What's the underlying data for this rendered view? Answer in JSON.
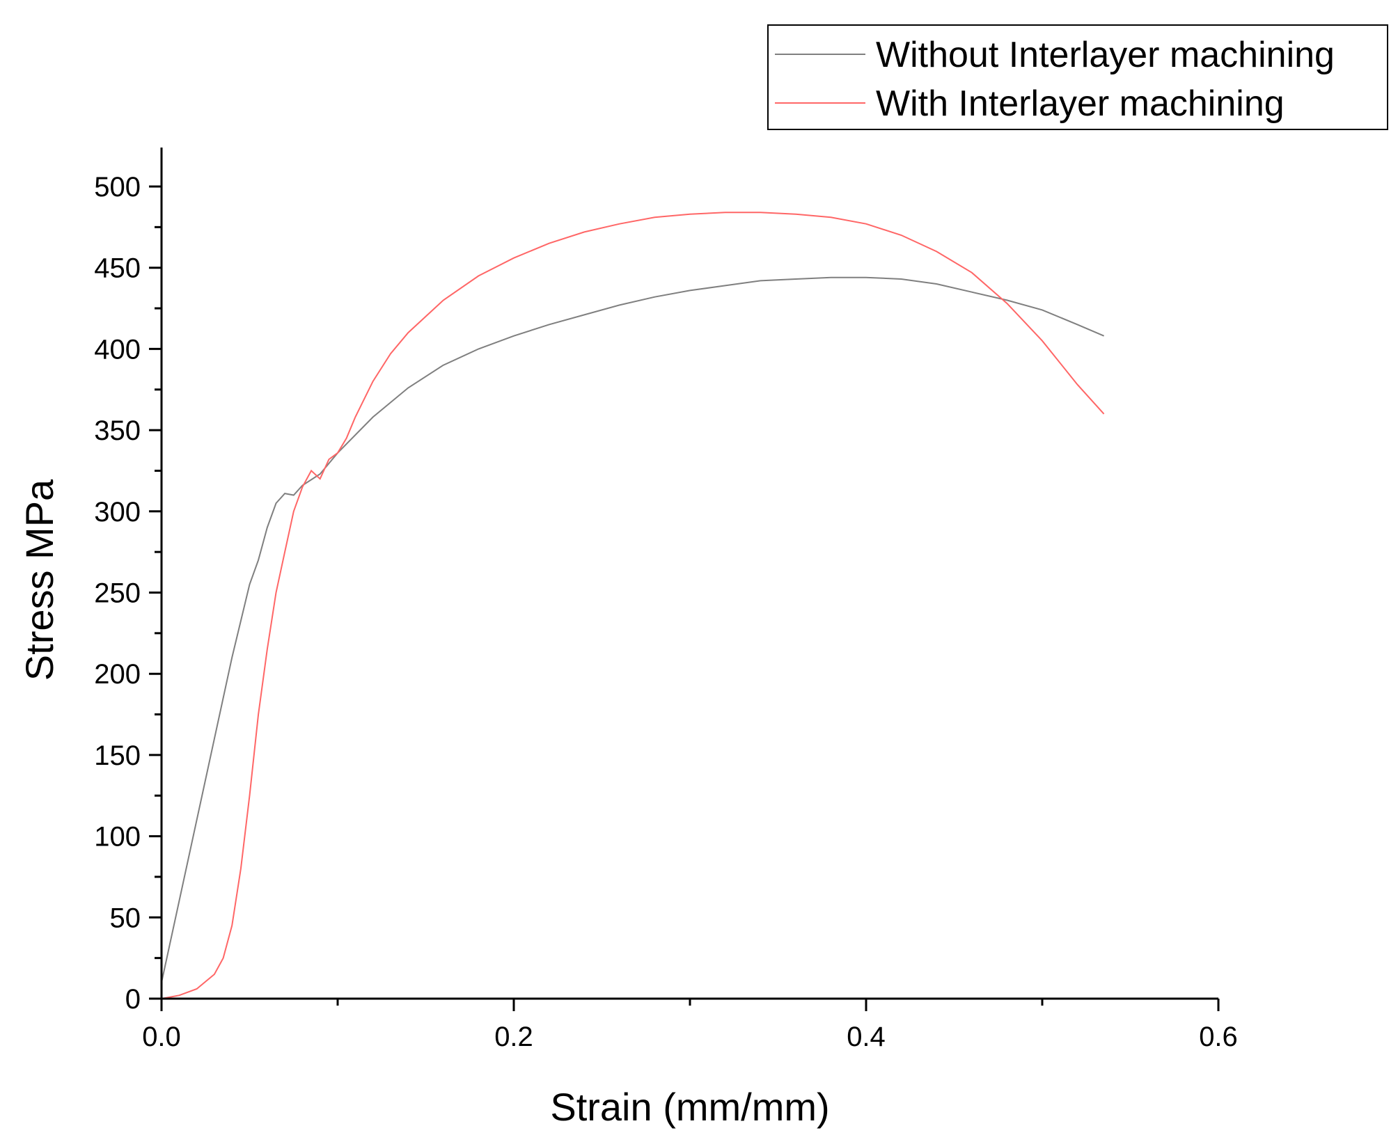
{
  "chart_data": {
    "type": "line",
    "title": "",
    "xlabel": "Strain (mm/mm)",
    "ylabel": "Stress MPa",
    "xlim": [
      0.0,
      0.6
    ],
    "ylim": [
      0,
      520
    ],
    "x_ticks": [
      "0.0",
      "0.2",
      "0.4",
      "0.6"
    ],
    "x_tick_values": [
      0.0,
      0.2,
      0.4,
      0.6
    ],
    "y_ticks": [
      "0",
      "50",
      "100",
      "150",
      "200",
      "250",
      "300",
      "350",
      "400",
      "450",
      "500"
    ],
    "y_tick_values": [
      0,
      50,
      100,
      150,
      200,
      250,
      300,
      350,
      400,
      450,
      500
    ],
    "grid": false,
    "legend_position": "top-right",
    "series": [
      {
        "name": "Without Interlayer machining",
        "color": "#7f7f7f",
        "x": [
          0.0,
          0.01,
          0.02,
          0.03,
          0.04,
          0.05,
          0.055,
          0.06,
          0.065,
          0.07,
          0.075,
          0.08,
          0.09,
          0.1,
          0.12,
          0.14,
          0.16,
          0.18,
          0.2,
          0.22,
          0.24,
          0.26,
          0.28,
          0.3,
          0.32,
          0.34,
          0.36,
          0.38,
          0.4,
          0.42,
          0.44,
          0.46,
          0.48,
          0.5,
          0.52,
          0.535
        ],
        "y": [
          10,
          60,
          110,
          160,
          210,
          255,
          270,
          290,
          305,
          311,
          310,
          316,
          323,
          336,
          358,
          376,
          390,
          400,
          408,
          415,
          421,
          427,
          432,
          436,
          439,
          442,
          443,
          444,
          444,
          443,
          440,
          435,
          430,
          424,
          415,
          408
        ]
      },
      {
        "name": "With Interlayer machining",
        "color": "#ff6666",
        "x": [
          0.0,
          0.01,
          0.02,
          0.03,
          0.035,
          0.04,
          0.045,
          0.05,
          0.055,
          0.06,
          0.065,
          0.07,
          0.075,
          0.08,
          0.085,
          0.09,
          0.095,
          0.1,
          0.105,
          0.11,
          0.12,
          0.13,
          0.14,
          0.16,
          0.18,
          0.2,
          0.22,
          0.24,
          0.26,
          0.28,
          0.3,
          0.32,
          0.34,
          0.36,
          0.38,
          0.4,
          0.42,
          0.44,
          0.46,
          0.48,
          0.5,
          0.52,
          0.535
        ],
        "y": [
          0,
          2,
          6,
          15,
          25,
          45,
          80,
          125,
          175,
          215,
          250,
          275,
          300,
          315,
          325,
          320,
          332,
          336,
          345,
          358,
          380,
          397,
          410,
          430,
          445,
          456,
          465,
          472,
          477,
          481,
          483,
          484,
          484,
          483,
          481,
          477,
          470,
          460,
          447,
          428,
          405,
          378,
          360
        ]
      }
    ]
  }
}
